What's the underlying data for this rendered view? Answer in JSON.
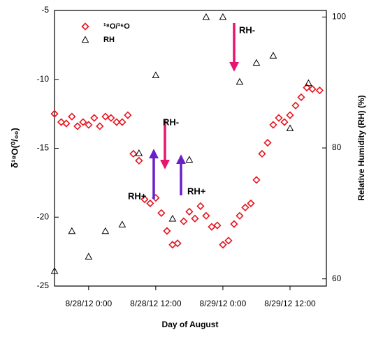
{
  "chart_data": {
    "type": "scatter",
    "x_label": "Day of August",
    "y_label": "δ¹⁸O(⁰/₀₀)",
    "y2_label": "Relative Humidity (RH) (%)",
    "xlim": [
      -6.1,
      42.5
    ],
    "xticks": [
      {
        "value": 0,
        "label": "8/28/12 0:00"
      },
      {
        "value": 12,
        "label": "8/28/12 12:00"
      },
      {
        "value": 24,
        "label": "8/29/12 0:00"
      },
      {
        "value": 36,
        "label": "8/29/12 12:00"
      }
    ],
    "ylim": [
      -25,
      -5
    ],
    "yticks": [
      -5,
      -10,
      -15,
      -20,
      -25
    ],
    "y2lim": [
      58.9,
      101
    ],
    "y2ticks": [
      60,
      80,
      100
    ],
    "series": [
      {
        "name": "¹⁸O/¹⁶O",
        "color": "#e8141e",
        "marker": "diamond",
        "x": [
          -6.1,
          -4.9,
          -4,
          -3,
          -2,
          -1,
          0,
          1,
          2,
          3,
          4,
          5,
          6,
          7,
          8,
          9,
          10,
          11,
          12,
          13,
          14,
          15,
          15.9,
          17,
          18,
          19,
          20,
          21,
          22,
          23,
          24,
          25,
          26,
          27,
          28,
          29,
          30,
          31,
          32,
          33,
          34,
          35,
          36,
          37,
          38,
          39,
          40,
          41.3
        ],
        "values": [
          -12.5,
          -13.1,
          -13.2,
          -12.7,
          -13.4,
          -13.1,
          -13.3,
          -12.8,
          -13.4,
          -12.7,
          -12.8,
          -13.1,
          -13.1,
          -12.6,
          -15.4,
          -15.9,
          -18.7,
          -19.0,
          -18.6,
          -19.7,
          -21.0,
          -22.0,
          -21.9,
          -20.3,
          -19.6,
          -20.1,
          -19.2,
          -19.9,
          -20.7,
          -20.6,
          -22.0,
          -21.7,
          -20.5,
          -19.9,
          -19.3,
          -19.0,
          -17.3,
          -15.4,
          -14.6,
          -13.3,
          -12.8,
          -13.1,
          -12.6,
          -11.9,
          -11.3,
          -10.6,
          -10.7,
          -10.8
        ]
      },
      {
        "name": "RH",
        "color": "#000000",
        "marker": "triangle",
        "axis": "y2",
        "x": [
          -6.1,
          -3,
          0,
          3,
          6,
          9,
          12,
          15,
          18,
          21,
          24,
          27,
          30,
          33,
          36,
          39.3
        ],
        "values": [
          61.2,
          67.3,
          63.4,
          67.3,
          68.3,
          79.2,
          91.1,
          69.2,
          78.2,
          100,
          100,
          90.1,
          93.0,
          94.1,
          83.0,
          89.9
        ]
      }
    ],
    "annotations": [
      {
        "text": "RH-",
        "color": "#e8146e"
      },
      {
        "text": "RH-",
        "color": "#e8146e"
      },
      {
        "text": "RH+",
        "color": "#6a1fc8"
      },
      {
        "text": "RH+",
        "color": "#6a1fc8"
      }
    ]
  }
}
